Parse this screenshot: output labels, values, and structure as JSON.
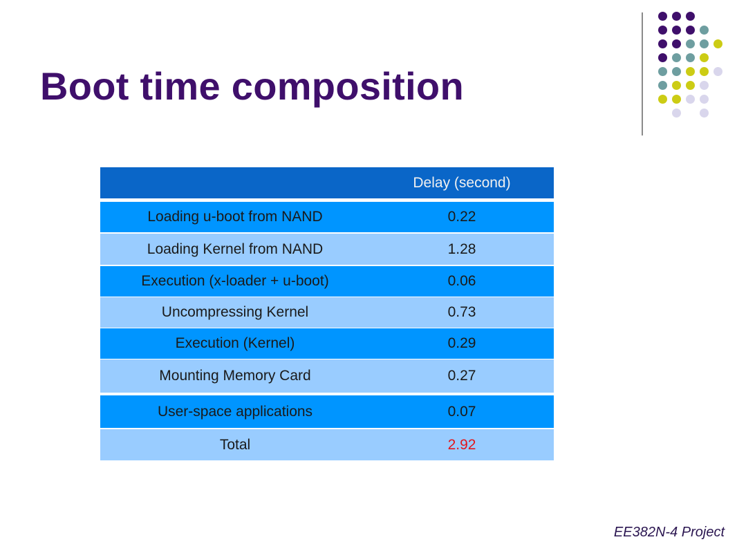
{
  "slide": {
    "title": "Boot time composition",
    "footer": "EE382N-4 Project"
  },
  "table": {
    "header": {
      "label": "",
      "value": "Delay (second)"
    },
    "rows": [
      {
        "label": "Loading u-boot from NAND",
        "value": "0.22"
      },
      {
        "label": "Loading Kernel from NAND",
        "value": "1.28"
      },
      {
        "label": "Execution (x-loader + u-boot)",
        "value": "0.06"
      },
      {
        "label": "Uncompressing Kernel",
        "value": "0.73"
      },
      {
        "label": "Execution (Kernel)",
        "value": "0.29"
      },
      {
        "label": "Mounting Memory Card",
        "value": "0.27"
      },
      {
        "label": "User-space applications",
        "value": "0.07"
      }
    ],
    "total": {
      "label": "Total",
      "value": "2.92"
    }
  },
  "colors": {
    "title": "#3f0f6b",
    "header_bg": "#0a66c8",
    "row_mid": "#0095ff",
    "row_light": "#99ccff",
    "total_value": "#e3161b",
    "dot_purple": "#3f0f6b",
    "dot_teal": "#6e9ea0",
    "dot_yellow": "#cccc14",
    "dot_lavender": "#d9d6ec"
  }
}
